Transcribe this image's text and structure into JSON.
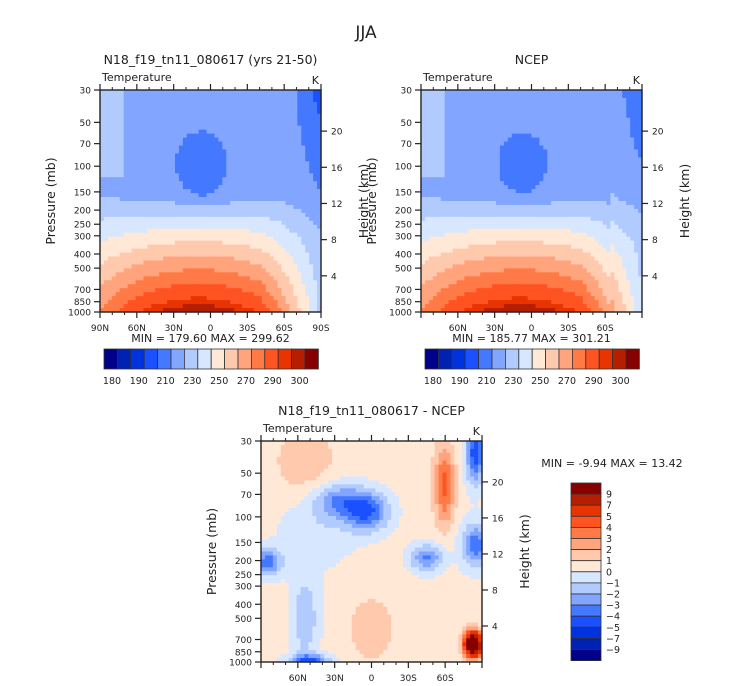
{
  "page_title": "JJA",
  "chart_data": [
    {
      "type": "heatmap",
      "id": "model",
      "title": "N18_f19_tn11_080617 (yrs 21-50)",
      "field_label": "Temperature",
      "units": "K",
      "ylabel": "Pressure (mb)",
      "ylabel_right": "Height (km)",
      "x_ticks": [
        "90N",
        "60N",
        "30N",
        "0",
        "30S",
        "60S",
        "90S"
      ],
      "y_ticks": [
        "30",
        "50",
        "70",
        "100",
        "150",
        "200",
        "250",
        "300",
        "400",
        "500",
        "700",
        "850",
        "1000"
      ],
      "y_ticks_right": [
        "20",
        "16",
        "12",
        "8",
        "4"
      ],
      "min": "179.60",
      "max": "299.62",
      "stats_text": "MIN = 179.60   MAX = 299.62",
      "colorbar": {
        "orientation": "horizontal",
        "labels": [
          "180",
          "190",
          "210",
          "230",
          "250",
          "270",
          "290",
          "300"
        ]
      }
    },
    {
      "type": "heatmap",
      "id": "obs",
      "title": "NCEP",
      "field_label": "Temperature",
      "units": "K",
      "ylabel": "Pressure (mb)",
      "ylabel_right": "Height (km)",
      "x_ticks": [
        "60N",
        "30N",
        "0",
        "30S",
        "60S"
      ],
      "y_ticks": [
        "30",
        "50",
        "70",
        "100",
        "150",
        "200",
        "250",
        "300",
        "400",
        "500",
        "700",
        "850",
        "1000"
      ],
      "y_ticks_right": [
        "20",
        "16",
        "12",
        "8",
        "4"
      ],
      "min": "185.77",
      "max": "301.21",
      "stats_text": "MIN = 185.77   MAX = 301.21",
      "colorbar": {
        "orientation": "horizontal",
        "labels": [
          "180",
          "190",
          "210",
          "230",
          "250",
          "270",
          "290",
          "300"
        ]
      }
    },
    {
      "type": "heatmap",
      "id": "diff",
      "title": "N18_f19_tn11_080617 - NCEP",
      "field_label": "Temperature",
      "units": "K",
      "ylabel": "Pressure (mb)",
      "ylabel_right": "Height (km)",
      "x_ticks": [
        "60N",
        "30N",
        "0",
        "30S",
        "60S"
      ],
      "y_ticks": [
        "30",
        "50",
        "70",
        "100",
        "150",
        "200",
        "250",
        "300",
        "400",
        "500",
        "700",
        "850",
        "1000"
      ],
      "y_ticks_right": [
        "20",
        "16",
        "12",
        "8",
        "4"
      ],
      "min": "-9.94",
      "max": "13.42",
      "stats_text": "MIN =  -9.94   MAX =  13.42",
      "colorbar": {
        "orientation": "vertical",
        "labels": [
          "9",
          "7",
          "5",
          "4",
          "3",
          "2",
          "1",
          "0",
          "-1",
          "-2",
          "-3",
          "-4",
          "-5",
          "-7",
          "-9"
        ]
      }
    }
  ],
  "palette": [
    "#00008a",
    "#0022b4",
    "#0033dd",
    "#1a50ff",
    "#4478ff",
    "#82a6ff",
    "#b2cbff",
    "#d6e7ff",
    "#ffe8d6",
    "#ffc9ae",
    "#ffa47c",
    "#ff7a47",
    "#ff5322",
    "#e83400",
    "#b51e00",
    "#870000"
  ]
}
